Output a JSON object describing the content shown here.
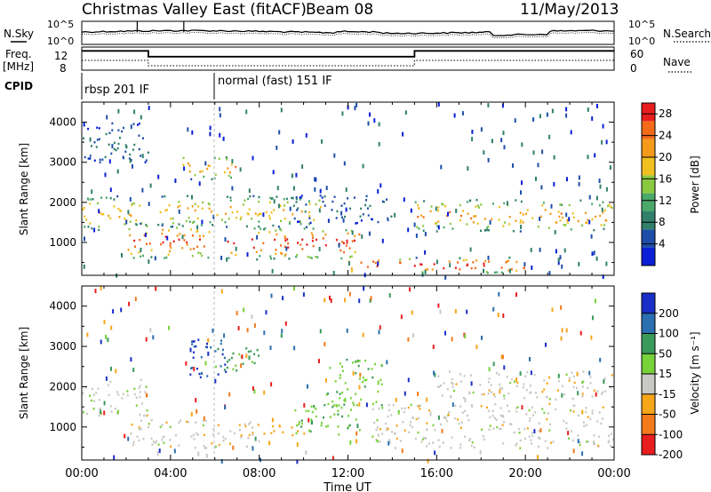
{
  "header": {
    "title": "Christmas Valley East (fitACF)",
    "beam": "Beam 08",
    "date": "11/May/2013"
  },
  "sky_panel": {
    "left_label": "N.Sky",
    "right_label": "N.Search",
    "left_ticks": [
      "10^5",
      "10^0"
    ],
    "right_ticks": [
      "10^5",
      "10^0"
    ]
  },
  "freq_panel": {
    "left_label_1": "Freq.",
    "left_label_2": "[MHz]",
    "left_ticks": [
      "12",
      "8"
    ],
    "right_ticks": [
      "60",
      "0"
    ],
    "right_label": "Nave"
  },
  "cpid": {
    "label": "CPID",
    "modes": [
      "rbsp 201 IF",
      "normal (fast) 151 IF"
    ]
  },
  "x_axis": {
    "label": "Time UT",
    "ticks": [
      "00:00",
      "04:00",
      "08:00",
      "12:00",
      "16:00",
      "20:00",
      "00:00"
    ]
  },
  "power_panel": {
    "ylabel": "Slant Range [km]",
    "yticks": [
      "1000",
      "2000",
      "3000",
      "4000"
    ],
    "colorbar_label": "Power [dB]",
    "colorbar_ticks": [
      "4",
      "8",
      "12",
      "16",
      "20",
      "24",
      "28"
    ]
  },
  "velocity_panel": {
    "ylabel": "Slant Range [km]",
    "yticks": [
      "1000",
      "2000",
      "3000",
      "4000"
    ],
    "colorbar_label": "Velocity [m s⁻¹]",
    "colorbar_ticks": [
      "200",
      "100",
      "50",
      "15",
      "-15",
      "-50",
      "-100",
      "-200"
    ]
  },
  "colors": {
    "power_scale": [
      "#0a1fd6",
      "#1d4ea8",
      "#2f7f6a",
      "#4aa86a",
      "#8bc840",
      "#f0c020",
      "#f59a1a",
      "#f26a1a",
      "#e81e1e"
    ],
    "velocity_scale": [
      "#1a2fc8",
      "#2a6fb0",
      "#3a9a5a",
      "#78d23a",
      "#c8c8c4",
      "#f5a61a",
      "#f27a1a",
      "#e81e1e"
    ],
    "ground_scatter": "#c8c8c4"
  },
  "chart_data": [
    {
      "type": "line",
      "title": "N.Sky / N.Search",
      "x_range_hours": [
        0,
        24
      ],
      "y_scale": "log",
      "ylim": [
        1,
        100000
      ]
    },
    {
      "type": "line",
      "title": "Freq. / Nave",
      "x": [
        0,
        3,
        3,
        15,
        15,
        24
      ],
      "series": [
        {
          "name": "Freq.",
          "values": [
            12,
            12,
            10.5,
            10.5,
            12,
            12
          ]
        }
      ],
      "ylim": [
        8,
        12
      ]
    },
    {
      "type": "heatmap",
      "title": "Power [dB]",
      "xlabel": "Time UT",
      "ylabel": "Slant Range [km]",
      "x_range_hours": [
        0,
        24
      ],
      "ylim": [
        180,
        4500
      ],
      "zlim": [
        0,
        30
      ],
      "bands": [
        {
          "t": [
            0.0,
            2.7
          ],
          "range": [
            1300,
            2200
          ],
          "power": 20
        },
        {
          "t": [
            2.0,
            6.0
          ],
          "range": [
            600,
            1500
          ],
          "power": 26
        },
        {
          "t": [
            4.5,
            7.0
          ],
          "range": [
            2600,
            3200
          ],
          "power": 22
        },
        {
          "t": [
            3.5,
            11.0
          ],
          "range": [
            1400,
            2200
          ],
          "power": 20
        },
        {
          "t": [
            6.5,
            12.5
          ],
          "range": [
            600,
            1400
          ],
          "power": 28
        },
        {
          "t": [
            9.5,
            14.0
          ],
          "range": [
            1500,
            2200
          ],
          "power": 8
        },
        {
          "t": [
            12.0,
            20.0
          ],
          "range": [
            250,
            650
          ],
          "power": 28
        },
        {
          "t": [
            15.0,
            24.0
          ],
          "range": [
            1300,
            2100
          ],
          "power": 22
        },
        {
          "t": [
            0.0,
            3.0
          ],
          "range": [
            3000,
            4000
          ],
          "power": 8
        }
      ]
    },
    {
      "type": "heatmap",
      "title": "Velocity [m s⁻¹]",
      "xlabel": "Time UT",
      "ylabel": "Slant Range [km]",
      "x_range_hours": [
        0,
        24
      ],
      "ylim": [
        180,
        4500
      ],
      "zlim": [
        -200,
        200
      ],
      "bands": [
        {
          "t": [
            0.0,
            3.0
          ],
          "range": [
            1300,
            2200
          ],
          "velocity": 0
        },
        {
          "t": [
            2.0,
            8.0
          ],
          "range": [
            500,
            1200
          ],
          "velocity": 0
        },
        {
          "t": [
            4.7,
            6.5
          ],
          "range": [
            2200,
            3200
          ],
          "velocity": 150
        },
        {
          "t": [
            6.0,
            8.0
          ],
          "range": [
            2400,
            3000
          ],
          "velocity": 60
        },
        {
          "t": [
            9.5,
            12.5
          ],
          "range": [
            800,
            1600
          ],
          "velocity": 40
        },
        {
          "t": [
            11.0,
            13.5
          ],
          "range": [
            1500,
            2700
          ],
          "velocity": 40
        },
        {
          "t": [
            7.0,
            10.0
          ],
          "range": [
            800,
            1100
          ],
          "velocity": -60
        },
        {
          "t": [
            13.0,
            24.0
          ],
          "range": [
            500,
            1600
          ],
          "velocity": 0
        },
        {
          "t": [
            16.0,
            24.0
          ],
          "range": [
            1700,
            2400
          ],
          "velocity": 0
        }
      ]
    }
  ]
}
